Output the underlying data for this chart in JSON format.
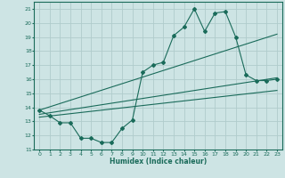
{
  "xlabel": "Humidex (Indice chaleur)",
  "bg_color": "#cde4e4",
  "grid_color": "#b0cccc",
  "line_color": "#1a6b5a",
  "xlim": [
    -0.5,
    23.5
  ],
  "ylim": [
    11,
    21.5
  ],
  "xticks": [
    0,
    1,
    2,
    3,
    4,
    5,
    6,
    7,
    8,
    9,
    10,
    11,
    12,
    13,
    14,
    15,
    16,
    17,
    18,
    19,
    20,
    21,
    22,
    23
  ],
  "yticks": [
    11,
    12,
    13,
    14,
    15,
    16,
    17,
    18,
    19,
    20,
    21
  ],
  "series1_x": [
    0,
    1,
    2,
    3,
    4,
    5,
    6,
    7,
    8,
    9,
    10,
    11,
    12,
    13,
    14,
    15,
    16,
    17,
    18,
    19,
    20,
    21,
    22,
    23
  ],
  "series1_y": [
    13.8,
    13.4,
    12.9,
    12.9,
    11.8,
    11.8,
    11.5,
    11.5,
    12.5,
    13.1,
    16.5,
    17.0,
    17.2,
    19.1,
    19.7,
    21.0,
    19.4,
    20.7,
    20.8,
    19.0,
    16.3,
    15.9,
    15.9,
    16.0
  ],
  "series2_x": [
    0,
    23
  ],
  "series2_y": [
    13.5,
    16.1
  ],
  "series3_x": [
    0,
    23
  ],
  "series3_y": [
    13.8,
    19.2
  ],
  "series4_x": [
    0,
    23
  ],
  "series4_y": [
    13.3,
    15.2
  ]
}
